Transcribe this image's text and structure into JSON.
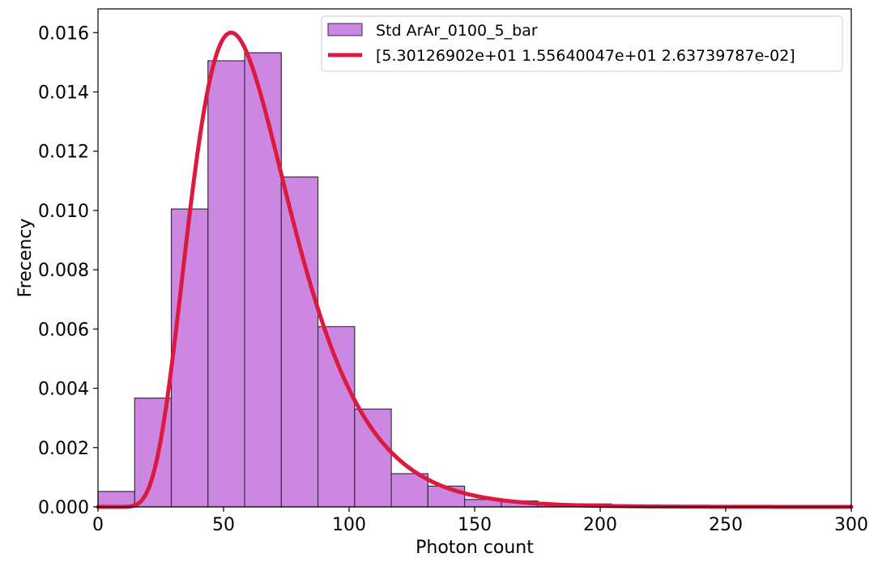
{
  "chart_data": {
    "type": "bar",
    "xlabel": "Photon count",
    "ylabel": "Frecency",
    "xlim": [
      0,
      300
    ],
    "ylim": [
      0,
      0.0168
    ],
    "x_ticks": [
      0,
      50,
      100,
      150,
      200,
      250,
      300
    ],
    "y_ticks": [
      0,
      0.002,
      0.004,
      0.006,
      0.008,
      0.01,
      0.012,
      0.014,
      0.016
    ],
    "x_tick_labels": [
      "0",
      "50",
      "100",
      "150",
      "200",
      "250",
      "300"
    ],
    "y_tick_labels": [
      "0.000",
      "0.002",
      "0.004",
      "0.006",
      "0.008",
      "0.010",
      "0.012",
      "0.014",
      "0.016"
    ],
    "grid": false,
    "legend_position": "top-right",
    "series": [
      {
        "name": "Std ArAr_0100_5_bar",
        "kind": "histogram",
        "color": "#cc88e0",
        "edge_color": "#3c2a40",
        "bin_edges": [
          0,
          14.6,
          29.2,
          43.8,
          58.4,
          73,
          87.6,
          102.2,
          116.8,
          131.4,
          146,
          160.6,
          175.2,
          189.8,
          204.4,
          219,
          233.6
        ],
        "values": [
          0.00052,
          0.00367,
          0.01005,
          0.01505,
          0.01532,
          0.01113,
          0.00608,
          0.0033,
          0.00112,
          0.0007,
          0.00025,
          0.0002,
          8e-05,
          0.0001,
          0.0,
          1e-05
        ]
      },
      {
        "name": "[5.30126902e+01 1.55640047e+01 2.63739787e-02]",
        "kind": "fit_curve",
        "color": "#dc1a40",
        "params": [
          53.0126902,
          15.5640047,
          0.0263739787
        ]
      }
    ]
  }
}
